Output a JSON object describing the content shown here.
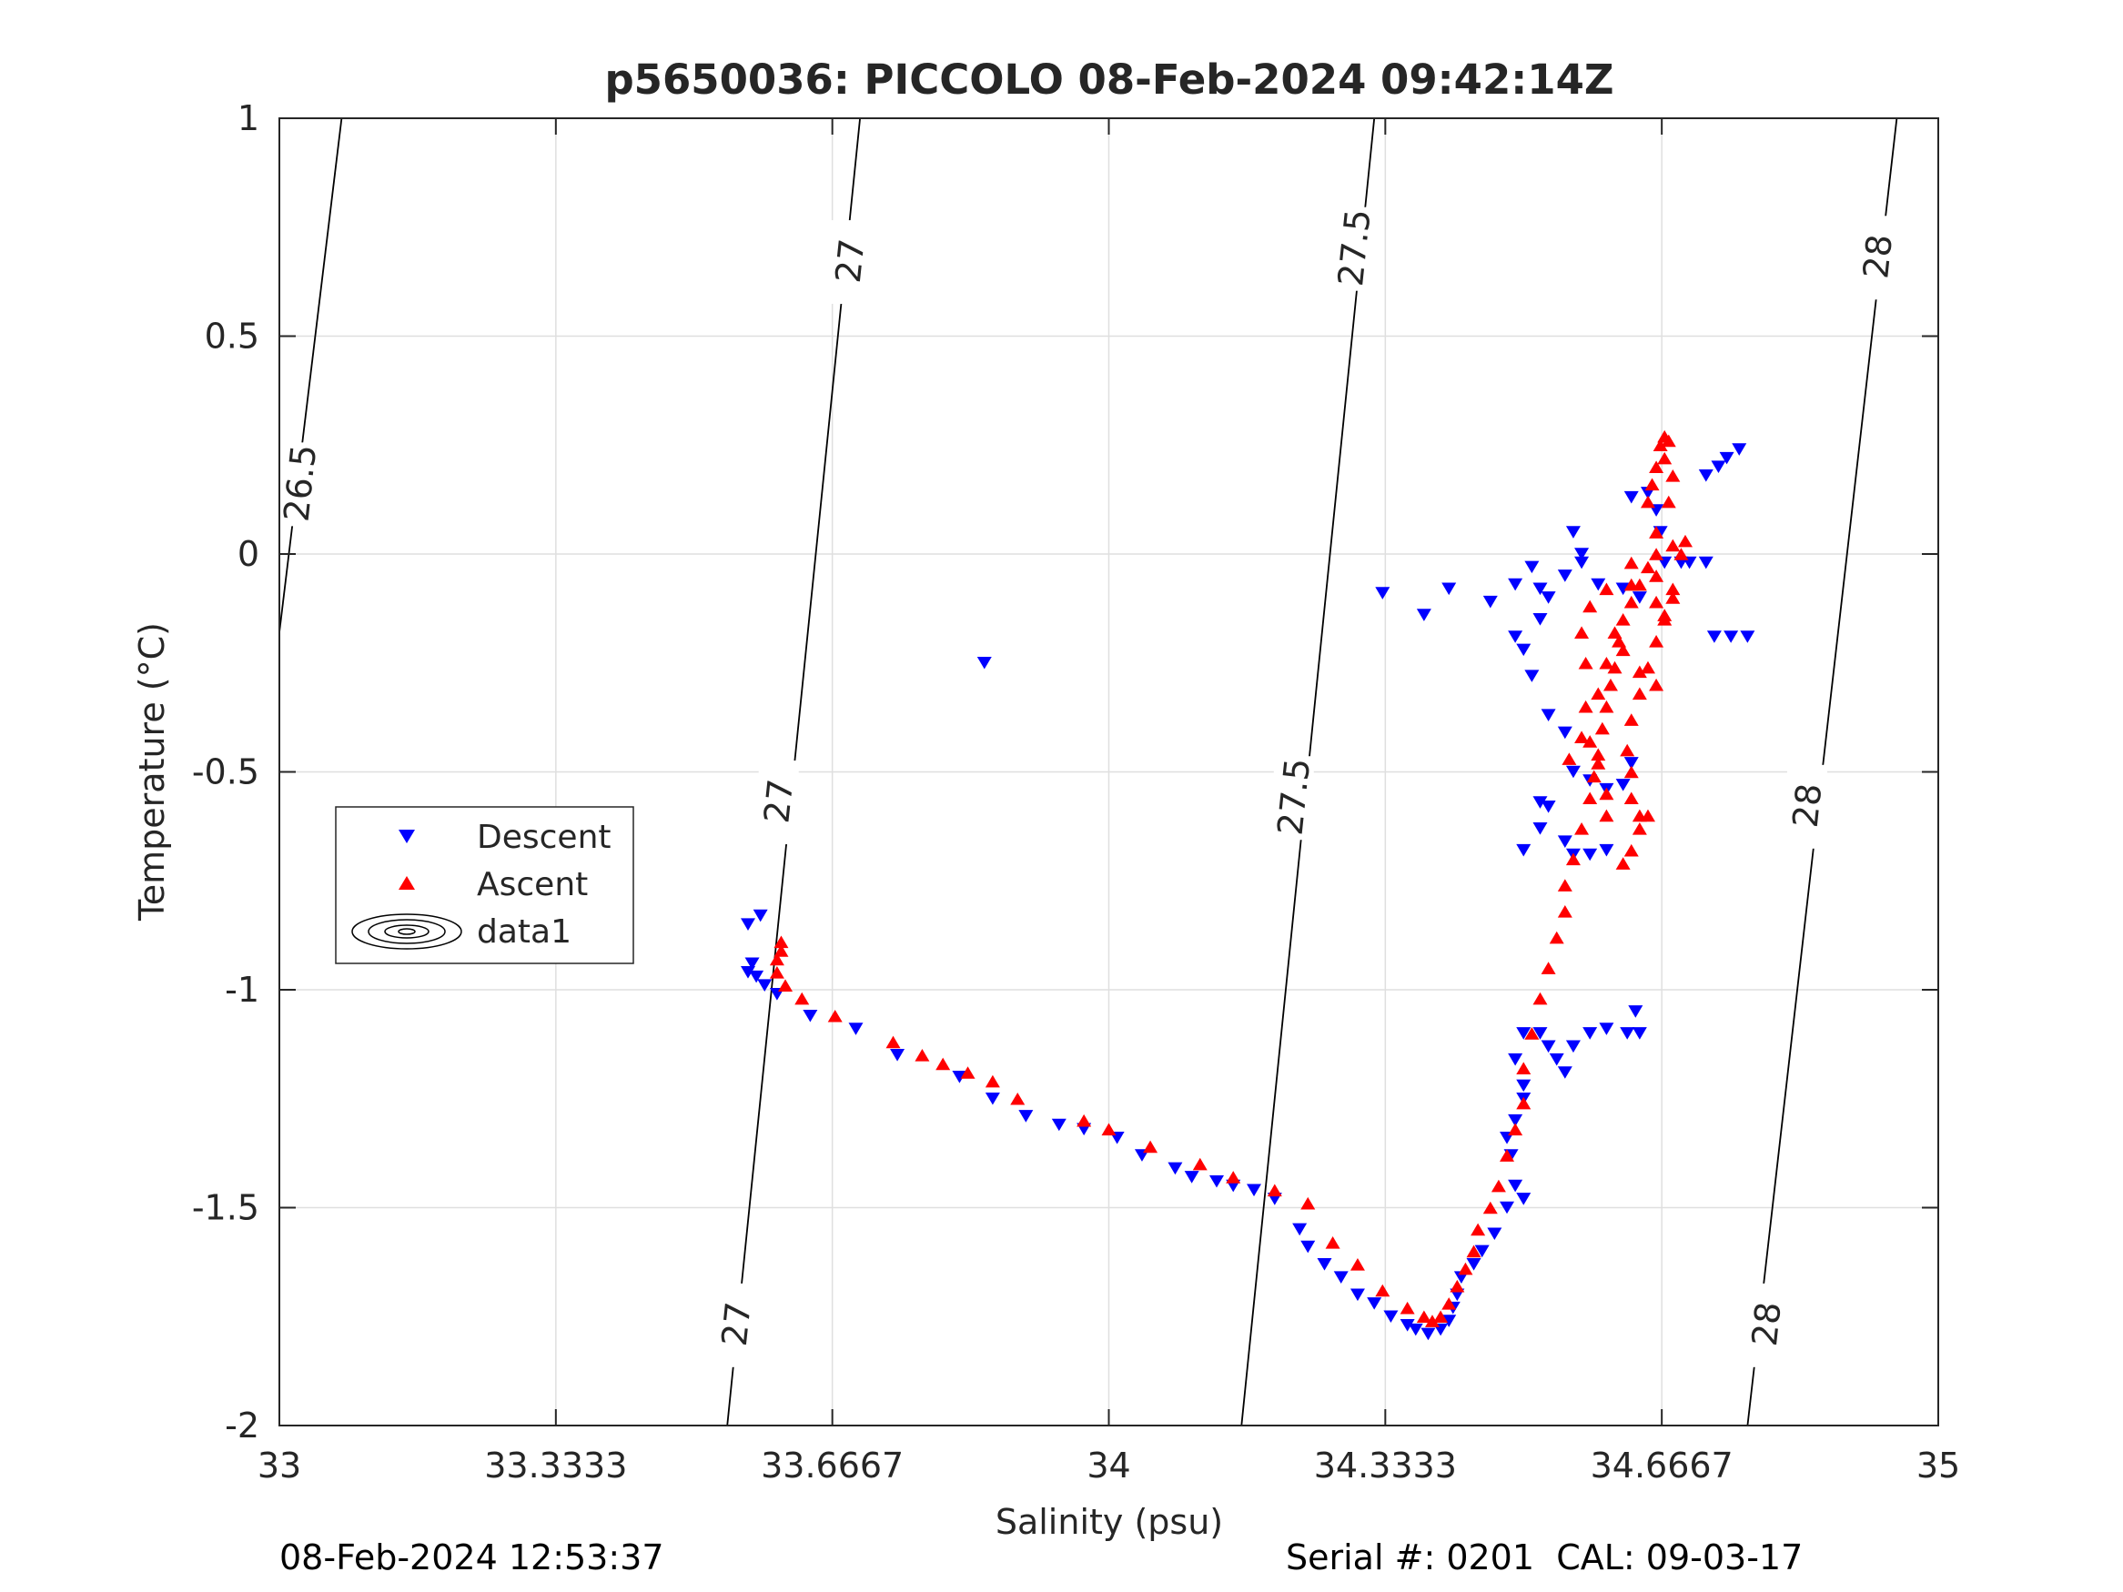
{
  "chart_data": {
    "type": "scatter",
    "title": "p5650036: PICCOLO 08-Feb-2024 09:42:14Z",
    "xlabel": "Salinity (psu)",
    "ylabel": "Temperature (°C)",
    "xlim": [
      33,
      35
    ],
    "ylim": [
      -2,
      1
    ],
    "xticks": [
      "33",
      "33.3333",
      "33.6667",
      "34",
      "34.3333",
      "34.6667",
      "35"
    ],
    "yticks": [
      "1",
      "0.5",
      "0",
      "-0.5",
      "-1",
      "-1.5",
      "-2"
    ],
    "grid": true,
    "legend": {
      "placement": "mid-left",
      "entries": [
        "Descent",
        "Ascent",
        "data1"
      ]
    },
    "density_contours": [
      {
        "label": "26.5",
        "points": [
          [
            33.0,
            -0.18
          ],
          [
            33.075,
            1.0
          ]
        ]
      },
      {
        "label": "27",
        "points": [
          [
            33.54,
            -2.0
          ],
          [
            33.7,
            1.0
          ]
        ]
      },
      {
        "label": "27.5",
        "points": [
          [
            34.16,
            -2.0
          ],
          [
            34.32,
            1.0
          ]
        ]
      },
      {
        "label": "28",
        "points": [
          [
            34.77,
            -2.0
          ],
          [
            34.95,
            1.0
          ]
        ]
      }
    ],
    "contour_labels": [
      {
        "text": "26.5",
        "x": 33.025,
        "y": 0.16
      },
      {
        "text": "27",
        "x": 33.688,
        "y": 0.67
      },
      {
        "text": "27",
        "x": 33.602,
        "y": -0.57
      },
      {
        "text": "27",
        "x": 33.551,
        "y": -1.77
      },
      {
        "text": "27.5",
        "x": 34.296,
        "y": 0.7
      },
      {
        "text": "27.5",
        "x": 34.223,
        "y": -0.56
      },
      {
        "text": "28",
        "x": 34.927,
        "y": 0.68
      },
      {
        "text": "28",
        "x": 34.842,
        "y": -0.58
      },
      {
        "text": "28",
        "x": 34.793,
        "y": -1.77
      }
    ],
    "series": [
      {
        "name": "Descent",
        "marker": "triangle-down",
        "color": "#0000ff",
        "points": [
          [
            33.58,
            -0.83
          ],
          [
            33.565,
            -0.85
          ],
          [
            33.57,
            -0.94
          ],
          [
            33.565,
            -0.96
          ],
          [
            33.575,
            -0.97
          ],
          [
            33.585,
            -0.99
          ],
          [
            33.6,
            -1.01
          ],
          [
            33.64,
            -1.06
          ],
          [
            33.695,
            -1.09
          ],
          [
            33.745,
            -1.15
          ],
          [
            33.82,
            -1.2
          ],
          [
            33.86,
            -1.25
          ],
          [
            33.9,
            -1.29
          ],
          [
            33.94,
            -1.31
          ],
          [
            33.97,
            -1.32
          ],
          [
            34.01,
            -1.34
          ],
          [
            34.04,
            -1.38
          ],
          [
            34.08,
            -1.41
          ],
          [
            34.1,
            -1.43
          ],
          [
            34.13,
            -1.44
          ],
          [
            34.15,
            -1.45
          ],
          [
            34.175,
            -1.46
          ],
          [
            34.2,
            -1.48
          ],
          [
            34.23,
            -1.55
          ],
          [
            34.24,
            -1.59
          ],
          [
            34.26,
            -1.63
          ],
          [
            34.28,
            -1.66
          ],
          [
            34.3,
            -1.7
          ],
          [
            34.32,
            -1.72
          ],
          [
            34.34,
            -1.75
          ],
          [
            34.36,
            -1.77
          ],
          [
            34.37,
            -1.78
          ],
          [
            34.385,
            -1.79
          ],
          [
            34.4,
            -1.78
          ],
          [
            34.41,
            -1.76
          ],
          [
            34.415,
            -1.73
          ],
          [
            34.42,
            -1.7
          ],
          [
            34.425,
            -1.66
          ],
          [
            34.44,
            -1.63
          ],
          [
            34.45,
            -1.6
          ],
          [
            34.465,
            -1.56
          ],
          [
            34.48,
            -1.5
          ],
          [
            34.5,
            -1.48
          ],
          [
            34.49,
            -1.45
          ],
          [
            34.485,
            -1.38
          ],
          [
            34.48,
            -1.34
          ],
          [
            34.49,
            -1.3
          ],
          [
            34.5,
            -1.25
          ],
          [
            34.5,
            -1.22
          ],
          [
            34.49,
            -1.16
          ],
          [
            34.5,
            -1.1
          ],
          [
            34.52,
            -1.1
          ],
          [
            34.53,
            -1.13
          ],
          [
            34.54,
            -1.16
          ],
          [
            34.56,
            -1.13
          ],
          [
            34.58,
            -1.1
          ],
          [
            34.6,
            -1.09
          ],
          [
            34.625,
            -1.1
          ],
          [
            34.64,
            -1.1
          ],
          [
            34.635,
            -1.05
          ],
          [
            34.55,
            -1.19
          ],
          [
            34.52,
            -0.63
          ],
          [
            34.52,
            -0.57
          ],
          [
            34.55,
            -0.66
          ],
          [
            34.56,
            -0.69
          ],
          [
            34.58,
            -0.69
          ],
          [
            34.6,
            -0.68
          ],
          [
            34.5,
            -0.68
          ],
          [
            34.53,
            -0.58
          ],
          [
            34.56,
            -0.5
          ],
          [
            34.58,
            -0.52
          ],
          [
            34.6,
            -0.54
          ],
          [
            34.62,
            -0.53
          ],
          [
            34.63,
            -0.48
          ],
          [
            34.55,
            -0.41
          ],
          [
            34.53,
            -0.37
          ],
          [
            34.51,
            -0.28
          ],
          [
            34.5,
            -0.22
          ],
          [
            34.52,
            -0.15
          ],
          [
            34.53,
            -0.1
          ],
          [
            34.55,
            -0.05
          ],
          [
            34.57,
            -0.02
          ],
          [
            34.56,
            0.05
          ],
          [
            34.57,
            0.0
          ],
          [
            34.59,
            -0.07
          ],
          [
            34.62,
            -0.08
          ],
          [
            34.64,
            -0.1
          ],
          [
            34.63,
            0.13
          ],
          [
            34.65,
            0.14
          ],
          [
            34.66,
            0.1
          ],
          [
            34.665,
            0.05
          ],
          [
            34.67,
            -0.02
          ],
          [
            34.69,
            -0.02
          ],
          [
            34.7,
            -0.02
          ],
          [
            34.72,
            -0.02
          ],
          [
            34.73,
            -0.19
          ],
          [
            34.75,
            -0.19
          ],
          [
            34.77,
            -0.19
          ],
          [
            34.72,
            0.18
          ],
          [
            34.735,
            0.2
          ],
          [
            34.745,
            0.22
          ],
          [
            34.76,
            0.24
          ],
          [
            34.33,
            -0.09
          ],
          [
            34.38,
            -0.14
          ],
          [
            34.41,
            -0.08
          ],
          [
            34.46,
            -0.11
          ],
          [
            34.49,
            -0.19
          ],
          [
            34.49,
            -0.07
          ],
          [
            34.51,
            -0.03
          ],
          [
            34.52,
            -0.08
          ],
          [
            33.85,
            -0.25
          ]
        ]
      },
      {
        "name": "Ascent",
        "marker": "triangle-up",
        "color": "#ff0000",
        "points": [
          [
            33.605,
            -0.89
          ],
          [
            33.605,
            -0.91
          ],
          [
            33.6,
            -0.93
          ],
          [
            33.6,
            -0.96
          ],
          [
            33.61,
            -0.99
          ],
          [
            33.63,
            -1.02
          ],
          [
            33.67,
            -1.06
          ],
          [
            33.74,
            -1.12
          ],
          [
            33.775,
            -1.15
          ],
          [
            33.8,
            -1.17
          ],
          [
            33.83,
            -1.19
          ],
          [
            33.86,
            -1.21
          ],
          [
            33.89,
            -1.25
          ],
          [
            33.97,
            -1.3
          ],
          [
            34.0,
            -1.32
          ],
          [
            34.05,
            -1.36
          ],
          [
            34.11,
            -1.4
          ],
          [
            34.15,
            -1.43
          ],
          [
            34.2,
            -1.46
          ],
          [
            34.24,
            -1.49
          ],
          [
            34.27,
            -1.58
          ],
          [
            34.3,
            -1.63
          ],
          [
            34.33,
            -1.69
          ],
          [
            34.36,
            -1.73
          ],
          [
            34.38,
            -1.75
          ],
          [
            34.39,
            -1.76
          ],
          [
            34.4,
            -1.75
          ],
          [
            34.41,
            -1.72
          ],
          [
            34.42,
            -1.68
          ],
          [
            34.43,
            -1.64
          ],
          [
            34.44,
            -1.6
          ],
          [
            34.445,
            -1.55
          ],
          [
            34.46,
            -1.5
          ],
          [
            34.47,
            -1.45
          ],
          [
            34.48,
            -1.38
          ],
          [
            34.49,
            -1.32
          ],
          [
            34.5,
            -1.26
          ],
          [
            34.5,
            -1.18
          ],
          [
            34.51,
            -1.1
          ],
          [
            34.52,
            -1.02
          ],
          [
            34.53,
            -0.95
          ],
          [
            34.54,
            -0.88
          ],
          [
            34.55,
            -0.82
          ],
          [
            34.55,
            -0.76
          ],
          [
            34.56,
            -0.7
          ],
          [
            34.57,
            -0.63
          ],
          [
            34.58,
            -0.56
          ],
          [
            34.585,
            -0.51
          ],
          [
            34.59,
            -0.46
          ],
          [
            34.595,
            -0.4
          ],
          [
            34.6,
            -0.35
          ],
          [
            34.605,
            -0.3
          ],
          [
            34.61,
            -0.26
          ],
          [
            34.615,
            -0.2
          ],
          [
            34.62,
            -0.15
          ],
          [
            34.63,
            -0.11
          ],
          [
            34.64,
            -0.07
          ],
          [
            34.65,
            -0.03
          ],
          [
            34.66,
            0.0
          ],
          [
            34.66,
            0.05
          ],
          [
            34.65,
            0.12
          ],
          [
            34.655,
            0.16
          ],
          [
            34.66,
            0.2
          ],
          [
            34.665,
            0.25
          ],
          [
            34.67,
            0.27
          ],
          [
            34.675,
            0.26
          ],
          [
            34.67,
            0.22
          ],
          [
            34.68,
            0.18
          ],
          [
            34.675,
            0.12
          ],
          [
            34.68,
            0.02
          ],
          [
            34.69,
            0.0
          ],
          [
            34.695,
            0.03
          ],
          [
            34.68,
            -0.08
          ],
          [
            34.67,
            -0.14
          ],
          [
            34.66,
            -0.2
          ],
          [
            34.65,
            -0.26
          ],
          [
            34.64,
            -0.32
          ],
          [
            34.63,
            -0.38
          ],
          [
            34.625,
            -0.45
          ],
          [
            34.63,
            -0.5
          ],
          [
            34.63,
            -0.56
          ],
          [
            34.64,
            -0.6
          ],
          [
            34.64,
            -0.63
          ],
          [
            34.63,
            -0.68
          ],
          [
            34.62,
            -0.71
          ],
          [
            34.65,
            -0.6
          ],
          [
            34.6,
            -0.55
          ],
          [
            34.59,
            -0.48
          ],
          [
            34.58,
            -0.43
          ],
          [
            34.59,
            -0.32
          ],
          [
            34.6,
            -0.25
          ],
          [
            34.61,
            -0.18
          ],
          [
            34.62,
            -0.22
          ],
          [
            34.64,
            -0.27
          ],
          [
            34.66,
            -0.3
          ],
          [
            34.67,
            -0.15
          ],
          [
            34.68,
            -0.1
          ],
          [
            34.66,
            -0.05
          ],
          [
            34.63,
            -0.02
          ],
          [
            34.6,
            -0.08
          ],
          [
            34.58,
            -0.12
          ],
          [
            34.57,
            -0.18
          ],
          [
            34.575,
            -0.25
          ],
          [
            34.575,
            -0.35
          ],
          [
            34.57,
            -0.42
          ],
          [
            34.555,
            -0.47
          ],
          [
            34.6,
            -0.6
          ],
          [
            34.63,
            -0.07
          ],
          [
            34.66,
            -0.11
          ]
        ]
      }
    ]
  },
  "footer": {
    "timestamp": "08-Feb-2024 12:53:37",
    "serial": "Serial #: 0201  CAL: 09-03-17"
  }
}
